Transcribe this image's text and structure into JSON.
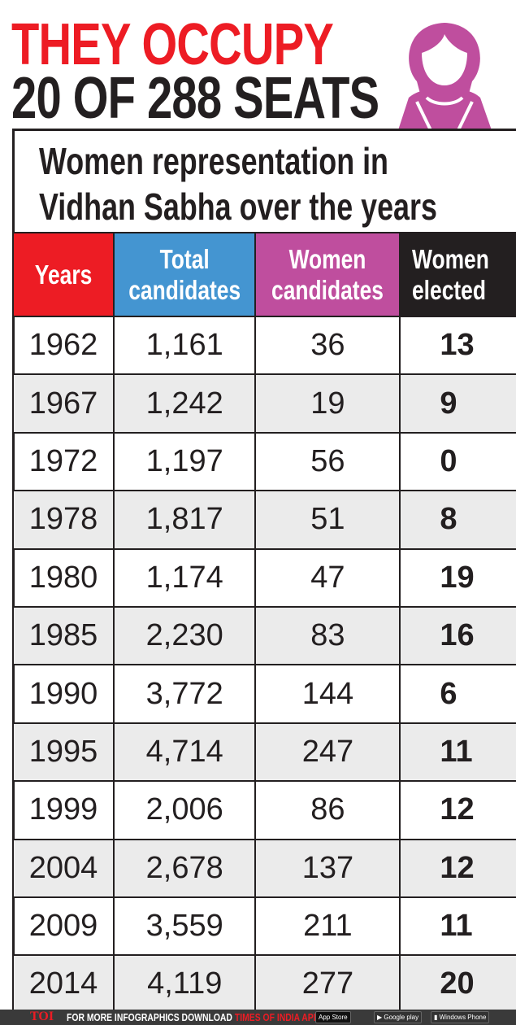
{
  "headline": {
    "line1": "THEY OCCUPY",
    "line2": "20 OF 288 SEATS"
  },
  "colors": {
    "red": "#ed1c24",
    "blue": "#4495d1",
    "purple": "#bf4e9e",
    "black": "#231f20",
    "alt_row": "#ebebeb"
  },
  "chart_data": {
    "type": "table",
    "title": "Women representation in Vidhan Sabha over the years",
    "columns": [
      "Years",
      "Total candidates",
      "Women candidates",
      "Women elected"
    ],
    "rows": [
      [
        "1962",
        "1,161",
        "36",
        "13"
      ],
      [
        "1967",
        "1,242",
        "19",
        "9"
      ],
      [
        "1972",
        "1,197",
        "56",
        "0"
      ],
      [
        "1978",
        "1,817",
        "51",
        "8"
      ],
      [
        "1980",
        "1,174",
        "47",
        "19"
      ],
      [
        "1985",
        "2,230",
        "83",
        "16"
      ],
      [
        "1990",
        "3,772",
        "144",
        "6"
      ],
      [
        "1995",
        "4,714",
        "247",
        "11"
      ],
      [
        "1999",
        "2,006",
        "86",
        "12"
      ],
      [
        "2004",
        "2,678",
        "137",
        "12"
      ],
      [
        "2009",
        "3,559",
        "211",
        "11"
      ],
      [
        "2014",
        "4,119",
        "277",
        "20"
      ]
    ]
  },
  "footer": {
    "logo": "TOI",
    "text": "FOR MORE  INFOGRAPHICS DOWNLOAD",
    "app": "TIMES OF INDIA  APP",
    "badges": [
      "App Store",
      "Google play",
      "Windows Phone"
    ]
  },
  "icons": {
    "woman": "woman-avatar-icon"
  }
}
